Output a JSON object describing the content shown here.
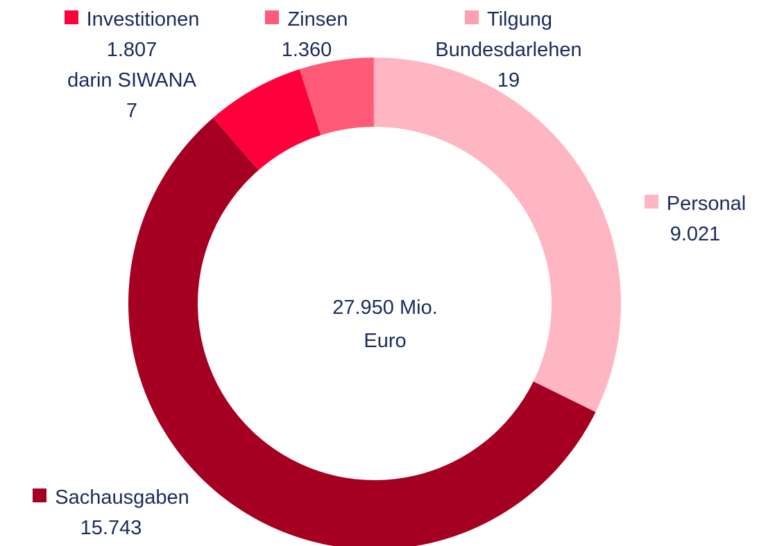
{
  "chart_data": {
    "type": "donut",
    "categories": [
      "Personal",
      "Sachausgaben",
      "Investitionen",
      "Zinsen",
      "Tilgung Bundesdarlehen"
    ],
    "values": [
      9021,
      15743,
      1807,
      1360,
      19
    ],
    "value_labels": [
      "9.021",
      "15.743",
      "1.807",
      "1.360",
      "19"
    ],
    "colors": [
      "#ffb6c3",
      "#a50021",
      "#ff003c",
      "#ff5a78",
      "#ff9fb2"
    ],
    "annotation": {
      "label": "darin SIWANA",
      "value": 7
    },
    "center_text": [
      "27.950 Mio.",
      "Euro"
    ]
  }
}
